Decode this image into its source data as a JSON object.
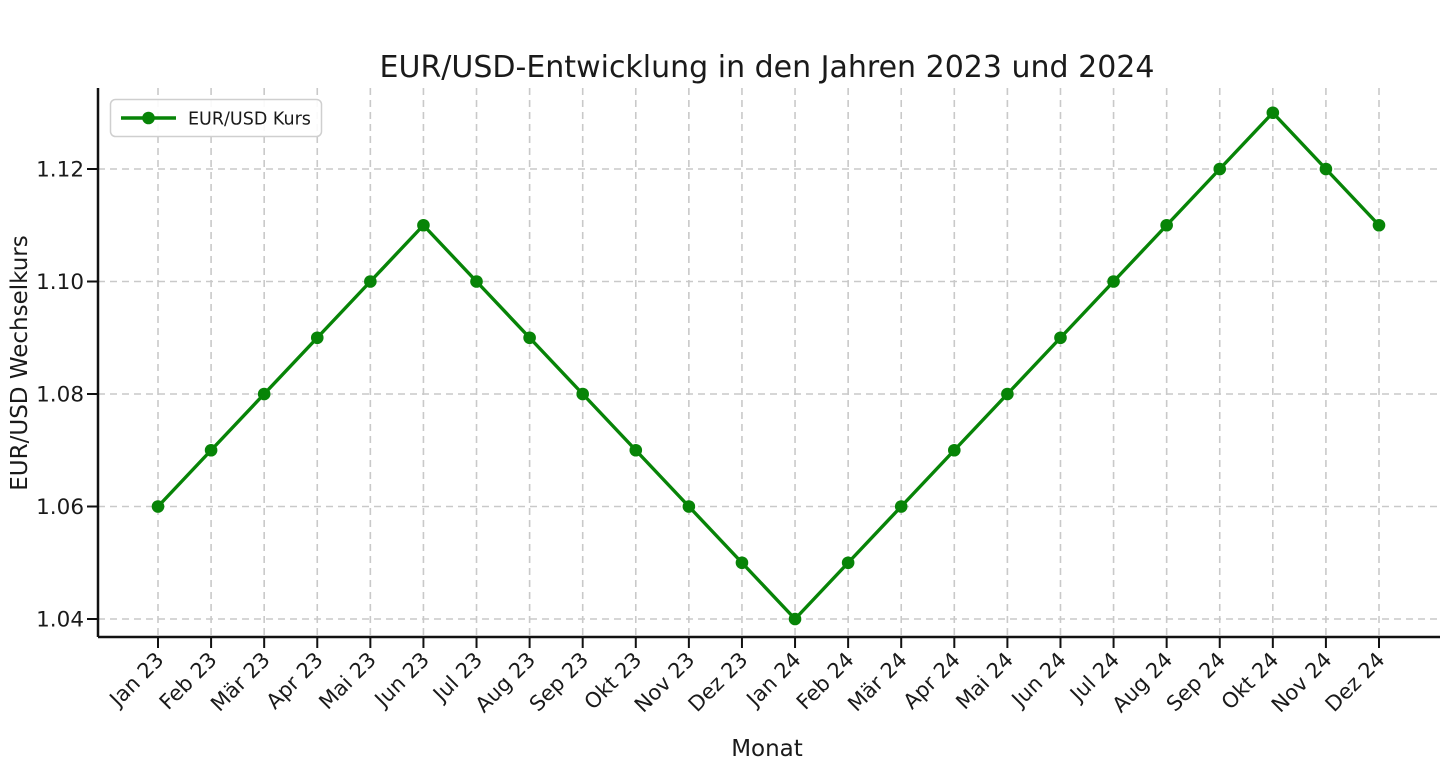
{
  "chart_data": {
    "type": "line",
    "title": "EUR/USD-Entwicklung in den Jahren 2023 und 2024",
    "xlabel": "Monat",
    "ylabel": "EUR/USD Wechselkurs",
    "categories": [
      "Jan 23",
      "Feb 23",
      "Mär 23",
      "Apr 23",
      "Mai 23",
      "Jun 23",
      "Jul 23",
      "Aug 23",
      "Sep 23",
      "Okt 23",
      "Nov 23",
      "Dez 23",
      "Jan 24",
      "Feb 24",
      "Mär 24",
      "Apr 24",
      "Mai 24",
      "Jun 24",
      "Jul 24",
      "Aug 24",
      "Sep 24",
      "Okt 24",
      "Nov 24",
      "Dez 24"
    ],
    "series": [
      {
        "name": "EUR/USD Kurs",
        "marker": "circle",
        "values": [
          1.06,
          1.07,
          1.08,
          1.09,
          1.1,
          1.11,
          1.1,
          1.09,
          1.08,
          1.07,
          1.06,
          1.05,
          1.04,
          1.05,
          1.06,
          1.07,
          1.08,
          1.09,
          1.1,
          1.11,
          1.12,
          1.13,
          1.12,
          1.11
        ]
      }
    ],
    "yticks": [
      1.04,
      1.06,
      1.08,
      1.1,
      1.12
    ],
    "ytick_labels": [
      "1.04",
      "1.06",
      "1.08",
      "1.10",
      "1.12"
    ],
    "ylim": [
      1.0368,
      1.1344
    ],
    "grid": true,
    "grid_style": "dashed",
    "legend": {
      "label": "EUR/USD Kurs",
      "position": "upper left"
    },
    "colors": {
      "line": "#078407",
      "grid": "#c9c9c9",
      "spine": "#111111",
      "text": "#1a1a1a"
    }
  }
}
